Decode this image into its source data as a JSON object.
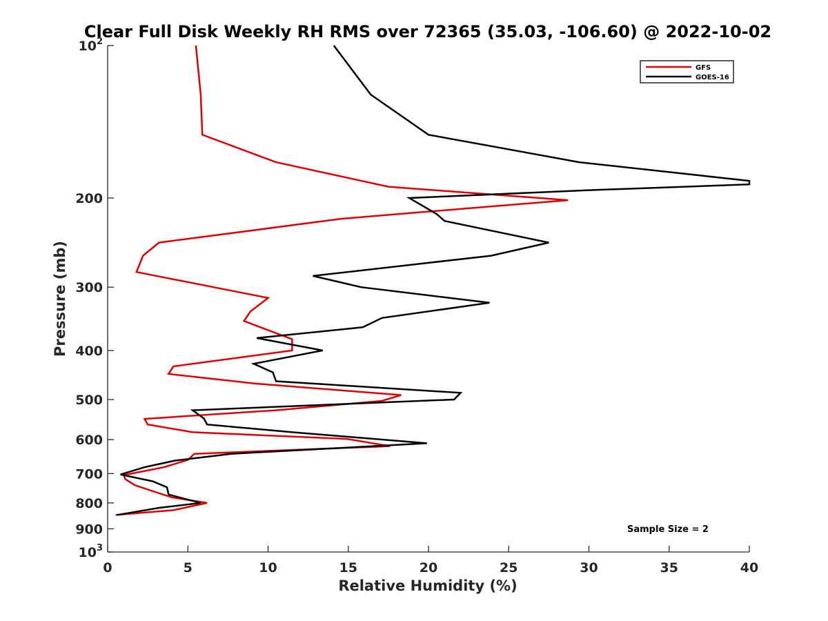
{
  "chart_data": {
    "type": "line",
    "title": "Clear Full Disk Weekly RH RMS over 72365 (35.03, -106.60) @ 2022-10-02",
    "xlabel": "Relative Humidity (%)",
    "ylabel": "Pressure (mb)",
    "xlim": [
      0,
      40
    ],
    "ylim": [
      100,
      1000
    ],
    "y_scale": "log",
    "y_reversed": true,
    "grid": false,
    "legend_position": "top-right",
    "x_ticks": [
      0,
      5,
      10,
      15,
      20,
      25,
      30,
      35,
      40
    ],
    "x_tick_labels": [
      "0",
      "5",
      "10",
      "15",
      "20",
      "25",
      "30",
      "35",
      "40"
    ],
    "y_ticks": [
      100,
      200,
      300,
      400,
      500,
      600,
      700,
      800,
      900,
      1000
    ],
    "y_tick_labels": [
      {
        "base": "10",
        "sup": "2"
      },
      {
        "base": "200",
        "sup": ""
      },
      {
        "base": "300",
        "sup": ""
      },
      {
        "base": "400",
        "sup": ""
      },
      {
        "base": "500",
        "sup": ""
      },
      {
        "base": "600",
        "sup": ""
      },
      {
        "base": "700",
        "sup": ""
      },
      {
        "base": "800",
        "sup": ""
      },
      {
        "base": "900",
        "sup": ""
      },
      {
        "base": "10",
        "sup": "3"
      }
    ],
    "annotation": "Sample Size = 2",
    "series": [
      {
        "name": "GFS",
        "color": "#e00000",
        "points": [
          [
            5.5,
            100
          ],
          [
            5.8,
            125
          ],
          [
            5.9,
            150
          ],
          [
            10.5,
            170
          ],
          [
            17.5,
            190
          ],
          [
            28.7,
            202
          ],
          [
            19.0,
            214
          ],
          [
            14.5,
            220
          ],
          [
            3.2,
            245
          ],
          [
            2.2,
            260
          ],
          [
            1.8,
            280
          ],
          [
            10.0,
            315
          ],
          [
            8.9,
            335
          ],
          [
            8.5,
            350
          ],
          [
            11.5,
            380
          ],
          [
            11.5,
            400
          ],
          [
            4.1,
            430
          ],
          [
            3.8,
            445
          ],
          [
            9.2,
            465
          ],
          [
            18.3,
            490
          ],
          [
            17.1,
            503
          ],
          [
            10.5,
            525
          ],
          [
            2.3,
            546
          ],
          [
            2.5,
            560
          ],
          [
            5.3,
            580
          ],
          [
            14.9,
            598
          ],
          [
            17.6,
            618
          ],
          [
            5.4,
            640
          ],
          [
            5.0,
            658
          ],
          [
            3.5,
            680
          ],
          [
            1.0,
            705
          ],
          [
            1.1,
            718
          ],
          [
            1.7,
            738
          ],
          [
            2.9,
            760
          ],
          [
            4.0,
            780
          ],
          [
            6.2,
            800
          ],
          [
            4.1,
            827
          ],
          [
            0.5,
            845
          ]
        ]
      },
      {
        "name": "GOES-16",
        "color": "#000000",
        "points": [
          [
            14.1,
            100
          ],
          [
            16.4,
            125
          ],
          [
            20.0,
            150
          ],
          [
            29.4,
            170
          ],
          [
            40.0,
            185
          ],
          [
            40.0,
            188
          ],
          [
            30.0,
            193
          ],
          [
            18.8,
            200
          ],
          [
            20.5,
            215
          ],
          [
            21.0,
            222
          ],
          [
            27.5,
            245
          ],
          [
            23.9,
            260
          ],
          [
            12.8,
            285
          ],
          [
            15.8,
            300
          ],
          [
            23.8,
            322
          ],
          [
            17.1,
            345
          ],
          [
            15.9,
            360
          ],
          [
            9.3,
            378
          ],
          [
            13.4,
            400
          ],
          [
            9.1,
            425
          ],
          [
            10.3,
            442
          ],
          [
            10.5,
            460
          ],
          [
            22.0,
            485
          ],
          [
            21.6,
            500
          ],
          [
            5.3,
            525
          ],
          [
            6.0,
            545
          ],
          [
            6.2,
            560
          ],
          [
            11.5,
            580
          ],
          [
            15.2,
            593
          ],
          [
            19.9,
            610
          ],
          [
            7.7,
            640
          ],
          [
            4.2,
            660
          ],
          [
            2.3,
            680
          ],
          [
            0.8,
            703
          ],
          [
            2.8,
            725
          ],
          [
            3.7,
            745
          ],
          [
            3.8,
            770
          ],
          [
            5.8,
            800
          ],
          [
            3.2,
            818
          ],
          [
            0.6,
            845
          ]
        ]
      }
    ]
  }
}
